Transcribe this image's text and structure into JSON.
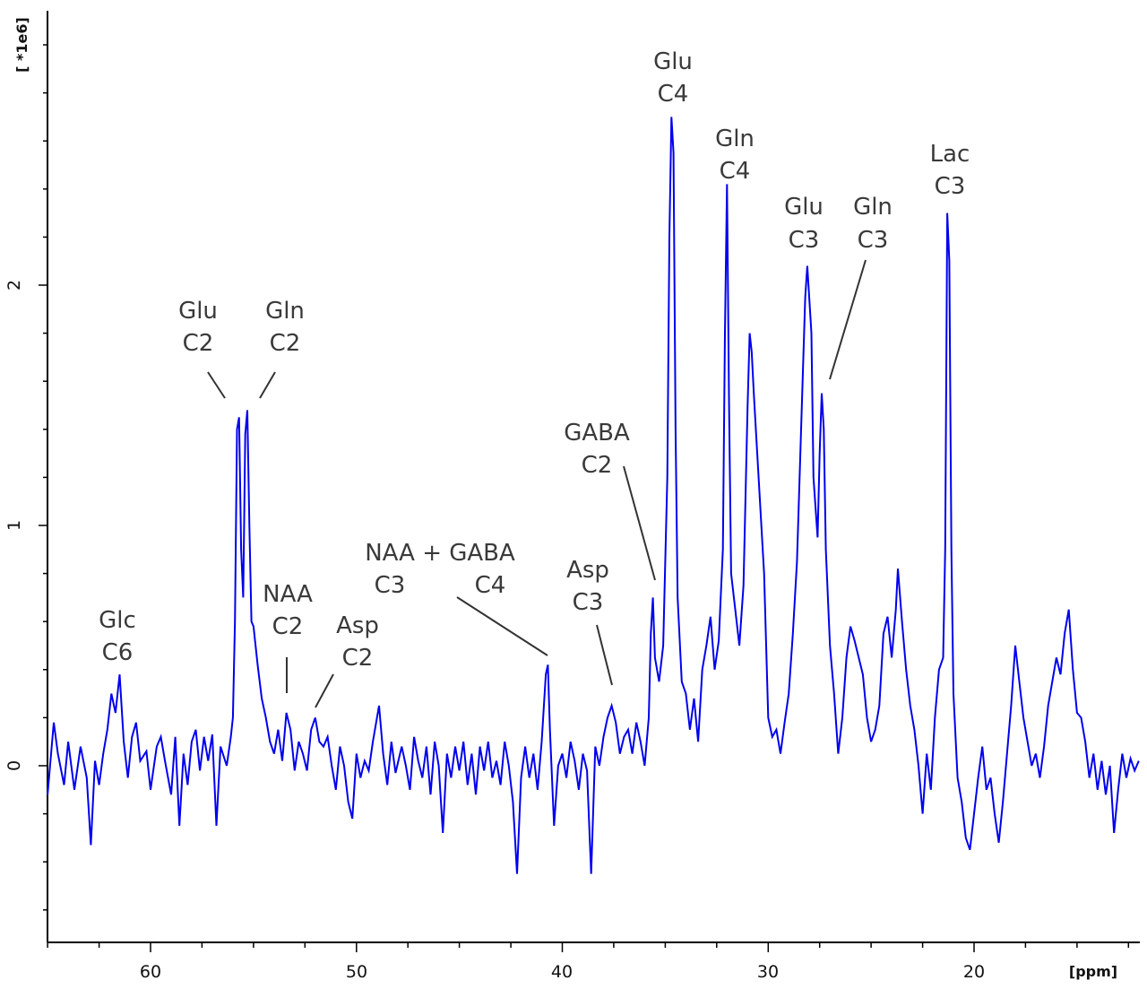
{
  "chart_data": {
    "type": "line",
    "title": "",
    "xlabel": "[ppm]",
    "ylabel": "[ *1e6]",
    "xlim": [
      65,
      12.0
    ],
    "ylim": [
      -0.72,
      3.12
    ],
    "x_reversed": true,
    "grid": false,
    "line_color": "#0000ee",
    "x_major_ticks": [
      60,
      50,
      40,
      30,
      20
    ],
    "x_minor_step": 2.5,
    "y_major_ticks": [
      0,
      1,
      2
    ],
    "y_minor_step": 0.2,
    "x_tick_labels": [
      "60",
      "50",
      "40",
      "30",
      "20"
    ],
    "y_tick_labels": [
      "0",
      "1",
      "2"
    ],
    "series": [
      {
        "name": "",
        "points": [
          [
            65.0,
            -0.12
          ],
          [
            64.7,
            0.18
          ],
          [
            64.5,
            0.05
          ],
          [
            64.2,
            -0.08
          ],
          [
            64.0,
            0.1
          ],
          [
            63.7,
            -0.1
          ],
          [
            63.4,
            0.08
          ],
          [
            63.1,
            -0.05
          ],
          [
            62.9,
            -0.33
          ],
          [
            62.7,
            0.02
          ],
          [
            62.5,
            -0.08
          ],
          [
            62.3,
            0.05
          ],
          [
            62.1,
            0.15
          ],
          [
            61.9,
            0.3
          ],
          [
            61.7,
            0.22
          ],
          [
            61.5,
            0.38
          ],
          [
            61.3,
            0.1
          ],
          [
            61.1,
            -0.05
          ],
          [
            60.9,
            0.12
          ],
          [
            60.7,
            0.18
          ],
          [
            60.5,
            0.02
          ],
          [
            60.2,
            0.06
          ],
          [
            60.0,
            -0.1
          ],
          [
            59.7,
            0.08
          ],
          [
            59.5,
            0.12
          ],
          [
            59.3,
            0.02
          ],
          [
            59.0,
            -0.12
          ],
          [
            58.8,
            0.12
          ],
          [
            58.6,
            -0.25
          ],
          [
            58.4,
            0.05
          ],
          [
            58.2,
            -0.08
          ],
          [
            58.0,
            0.1
          ],
          [
            57.8,
            0.15
          ],
          [
            57.6,
            -0.02
          ],
          [
            57.4,
            0.12
          ],
          [
            57.2,
            0.02
          ],
          [
            57.0,
            0.13
          ],
          [
            56.8,
            -0.25
          ],
          [
            56.6,
            0.08
          ],
          [
            56.3,
            0.0
          ],
          [
            56.1,
            0.12
          ],
          [
            56.0,
            0.2
          ],
          [
            55.9,
            0.6
          ],
          [
            55.8,
            1.4
          ],
          [
            55.7,
            1.45
          ],
          [
            55.6,
            0.9
          ],
          [
            55.5,
            0.7
          ],
          [
            55.4,
            1.38
          ],
          [
            55.3,
            1.48
          ],
          [
            55.2,
            1.0
          ],
          [
            55.1,
            0.6
          ],
          [
            55.0,
            0.58
          ],
          [
            54.8,
            0.42
          ],
          [
            54.6,
            0.28
          ],
          [
            54.4,
            0.2
          ],
          [
            54.2,
            0.1
          ],
          [
            54.0,
            0.05
          ],
          [
            53.8,
            0.15
          ],
          [
            53.6,
            0.02
          ],
          [
            53.4,
            0.22
          ],
          [
            53.2,
            0.15
          ],
          [
            53.0,
            -0.02
          ],
          [
            52.8,
            0.1
          ],
          [
            52.6,
            0.05
          ],
          [
            52.4,
            -0.02
          ],
          [
            52.2,
            0.15
          ],
          [
            52.0,
            0.2
          ],
          [
            51.8,
            0.1
          ],
          [
            51.6,
            0.08
          ],
          [
            51.4,
            0.12
          ],
          [
            51.2,
            0.0
          ],
          [
            51.0,
            -0.1
          ],
          [
            50.8,
            0.08
          ],
          [
            50.6,
            0.0
          ],
          [
            50.4,
            -0.15
          ],
          [
            50.2,
            -0.22
          ],
          [
            50.0,
            0.05
          ],
          [
            49.8,
            -0.05
          ],
          [
            49.6,
            0.02
          ],
          [
            49.4,
            -0.02
          ],
          [
            49.2,
            0.1
          ],
          [
            48.9,
            0.25
          ],
          [
            48.7,
            0.05
          ],
          [
            48.5,
            -0.08
          ],
          [
            48.3,
            0.1
          ],
          [
            48.1,
            -0.03
          ],
          [
            47.8,
            0.08
          ],
          [
            47.6,
            0.0
          ],
          [
            47.4,
            -0.1
          ],
          [
            47.2,
            0.12
          ],
          [
            47.0,
            0.02
          ],
          [
            46.8,
            -0.05
          ],
          [
            46.6,
            0.08
          ],
          [
            46.4,
            -0.12
          ],
          [
            46.2,
            0.1
          ],
          [
            46.0,
            0.0
          ],
          [
            45.8,
            -0.28
          ],
          [
            45.6,
            0.05
          ],
          [
            45.4,
            -0.05
          ],
          [
            45.2,
            0.08
          ],
          [
            45.0,
            -0.02
          ],
          [
            44.8,
            0.1
          ],
          [
            44.6,
            -0.08
          ],
          [
            44.4,
            0.05
          ],
          [
            44.2,
            -0.12
          ],
          [
            44.0,
            0.08
          ],
          [
            43.8,
            -0.02
          ],
          [
            43.6,
            0.1
          ],
          [
            43.4,
            -0.05
          ],
          [
            43.2,
            0.02
          ],
          [
            43.0,
            -0.08
          ],
          [
            42.8,
            0.1
          ],
          [
            42.6,
            0.0
          ],
          [
            42.4,
            -0.15
          ],
          [
            42.2,
            -0.45
          ],
          [
            42.0,
            -0.05
          ],
          [
            41.8,
            0.08
          ],
          [
            41.6,
            -0.05
          ],
          [
            41.4,
            0.05
          ],
          [
            41.2,
            -0.1
          ],
          [
            41.0,
            0.1
          ],
          [
            40.8,
            0.38
          ],
          [
            40.7,
            0.42
          ],
          [
            40.6,
            0.15
          ],
          [
            40.4,
            -0.25
          ],
          [
            40.2,
            0.0
          ],
          [
            40.0,
            0.05
          ],
          [
            39.8,
            -0.05
          ],
          [
            39.6,
            0.1
          ],
          [
            39.4,
            0.02
          ],
          [
            39.2,
            -0.1
          ],
          [
            39.0,
            0.05
          ],
          [
            38.8,
            -0.02
          ],
          [
            38.6,
            -0.45
          ],
          [
            38.4,
            0.08
          ],
          [
            38.2,
            0.0
          ],
          [
            38.0,
            0.12
          ],
          [
            37.8,
            0.2
          ],
          [
            37.6,
            0.25
          ],
          [
            37.4,
            0.18
          ],
          [
            37.2,
            0.05
          ],
          [
            37.0,
            0.12
          ],
          [
            36.8,
            0.15
          ],
          [
            36.6,
            0.05
          ],
          [
            36.4,
            0.18
          ],
          [
            36.2,
            0.1
          ],
          [
            36.0,
            0.0
          ],
          [
            35.8,
            0.2
          ],
          [
            35.7,
            0.55
          ],
          [
            35.6,
            0.7
          ],
          [
            35.5,
            0.45
          ],
          [
            35.3,
            0.35
          ],
          [
            35.1,
            0.5
          ],
          [
            34.9,
            1.2
          ],
          [
            34.8,
            2.2
          ],
          [
            34.7,
            2.7
          ],
          [
            34.6,
            2.55
          ],
          [
            34.5,
            1.4
          ],
          [
            34.4,
            0.7
          ],
          [
            34.2,
            0.35
          ],
          [
            34.0,
            0.3
          ],
          [
            33.8,
            0.15
          ],
          [
            33.6,
            0.28
          ],
          [
            33.4,
            0.1
          ],
          [
            33.2,
            0.4
          ],
          [
            33.0,
            0.5
          ],
          [
            32.8,
            0.62
          ],
          [
            32.6,
            0.4
          ],
          [
            32.4,
            0.52
          ],
          [
            32.2,
            0.9
          ],
          [
            32.1,
            1.8
          ],
          [
            32.0,
            2.42
          ],
          [
            31.9,
            1.5
          ],
          [
            31.8,
            0.8
          ],
          [
            31.6,
            0.65
          ],
          [
            31.4,
            0.5
          ],
          [
            31.2,
            0.75
          ],
          [
            31.0,
            1.5
          ],
          [
            30.9,
            1.8
          ],
          [
            30.8,
            1.72
          ],
          [
            30.7,
            1.55
          ],
          [
            30.6,
            1.4
          ],
          [
            30.4,
            1.1
          ],
          [
            30.2,
            0.8
          ],
          [
            30.0,
            0.2
          ],
          [
            29.8,
            0.12
          ],
          [
            29.6,
            0.15
          ],
          [
            29.4,
            0.05
          ],
          [
            29.2,
            0.18
          ],
          [
            29.0,
            0.3
          ],
          [
            28.8,
            0.55
          ],
          [
            28.6,
            0.85
          ],
          [
            28.4,
            1.4
          ],
          [
            28.2,
            1.95
          ],
          [
            28.1,
            2.08
          ],
          [
            27.9,
            1.8
          ],
          [
            27.8,
            1.2
          ],
          [
            27.6,
            0.95
          ],
          [
            27.5,
            1.3
          ],
          [
            27.4,
            1.55
          ],
          [
            27.3,
            1.4
          ],
          [
            27.2,
            0.9
          ],
          [
            27.0,
            0.5
          ],
          [
            26.8,
            0.3
          ],
          [
            26.6,
            0.05
          ],
          [
            26.4,
            0.2
          ],
          [
            26.2,
            0.45
          ],
          [
            26.0,
            0.58
          ],
          [
            25.8,
            0.52
          ],
          [
            25.6,
            0.45
          ],
          [
            25.4,
            0.38
          ],
          [
            25.2,
            0.2
          ],
          [
            25.0,
            0.1
          ],
          [
            24.8,
            0.15
          ],
          [
            24.6,
            0.25
          ],
          [
            24.4,
            0.55
          ],
          [
            24.2,
            0.62
          ],
          [
            24.0,
            0.45
          ],
          [
            23.8,
            0.65
          ],
          [
            23.7,
            0.82
          ],
          [
            23.5,
            0.6
          ],
          [
            23.3,
            0.4
          ],
          [
            23.1,
            0.25
          ],
          [
            22.9,
            0.15
          ],
          [
            22.7,
            0.0
          ],
          [
            22.5,
            -0.2
          ],
          [
            22.3,
            0.05
          ],
          [
            22.1,
            -0.1
          ],
          [
            21.9,
            0.2
          ],
          [
            21.7,
            0.4
          ],
          [
            21.5,
            0.45
          ],
          [
            21.4,
            0.9
          ],
          [
            21.3,
            2.3
          ],
          [
            21.2,
            2.1
          ],
          [
            21.1,
            0.9
          ],
          [
            21.0,
            0.3
          ],
          [
            20.8,
            -0.05
          ],
          [
            20.6,
            -0.15
          ],
          [
            20.4,
            -0.3
          ],
          [
            20.2,
            -0.35
          ],
          [
            20.0,
            -0.2
          ],
          [
            19.8,
            -0.05
          ],
          [
            19.6,
            0.08
          ],
          [
            19.4,
            -0.1
          ],
          [
            19.2,
            -0.05
          ],
          [
            19.0,
            -0.2
          ],
          [
            18.8,
            -0.32
          ],
          [
            18.6,
            -0.15
          ],
          [
            18.4,
            0.05
          ],
          [
            18.2,
            0.25
          ],
          [
            18.0,
            0.5
          ],
          [
            17.8,
            0.35
          ],
          [
            17.6,
            0.2
          ],
          [
            17.4,
            0.1
          ],
          [
            17.2,
            0.0
          ],
          [
            17.0,
            0.05
          ],
          [
            16.8,
            -0.05
          ],
          [
            16.6,
            0.08
          ],
          [
            16.4,
            0.25
          ],
          [
            16.2,
            0.35
          ],
          [
            16.0,
            0.45
          ],
          [
            15.8,
            0.38
          ],
          [
            15.6,
            0.55
          ],
          [
            15.4,
            0.65
          ],
          [
            15.2,
            0.4
          ],
          [
            15.0,
            0.22
          ],
          [
            14.8,
            0.2
          ],
          [
            14.6,
            0.1
          ],
          [
            14.4,
            -0.05
          ],
          [
            14.2,
            0.05
          ],
          [
            14.0,
            -0.1
          ],
          [
            13.8,
            0.02
          ],
          [
            13.6,
            -0.12
          ],
          [
            13.4,
            0.0
          ],
          [
            13.2,
            -0.28
          ],
          [
            13.0,
            -0.1
          ],
          [
            12.8,
            0.05
          ],
          [
            12.6,
            -0.05
          ],
          [
            12.4,
            0.03
          ],
          [
            12.2,
            -0.02
          ],
          [
            12.0,
            0.02
          ]
        ]
      }
    ],
    "annotations": [
      {
        "id": "glc-c6",
        "line1": "Glc",
        "line2": "C6"
      },
      {
        "id": "glu-c2",
        "line1": "Glu",
        "line2": "C2"
      },
      {
        "id": "gln-c2",
        "line1": "Gln",
        "line2": "C2"
      },
      {
        "id": "naa-c2",
        "line1": "NAA",
        "line2": "C2"
      },
      {
        "id": "asp-c2",
        "line1": "Asp",
        "line2": "C2"
      },
      {
        "id": "naa-gaba",
        "line1": "NAA + GABA",
        "line2a": "C3",
        "line2b": "C4"
      },
      {
        "id": "asp-c3",
        "line1": "Asp",
        "line2": "C3"
      },
      {
        "id": "gaba-c2",
        "line1": "GABA",
        "line2": "C2"
      },
      {
        "id": "glu-c4",
        "line1": "Glu",
        "line2": "C4"
      },
      {
        "id": "gln-c4",
        "line1": "Gln",
        "line2": "C4"
      },
      {
        "id": "glu-c3",
        "line1": "Glu",
        "line2": "C3"
      },
      {
        "id": "gln-c3",
        "line1": "Gln",
        "line2": "C3"
      },
      {
        "id": "lac-c3",
        "line1": "Lac",
        "line2": "C3"
      }
    ]
  }
}
